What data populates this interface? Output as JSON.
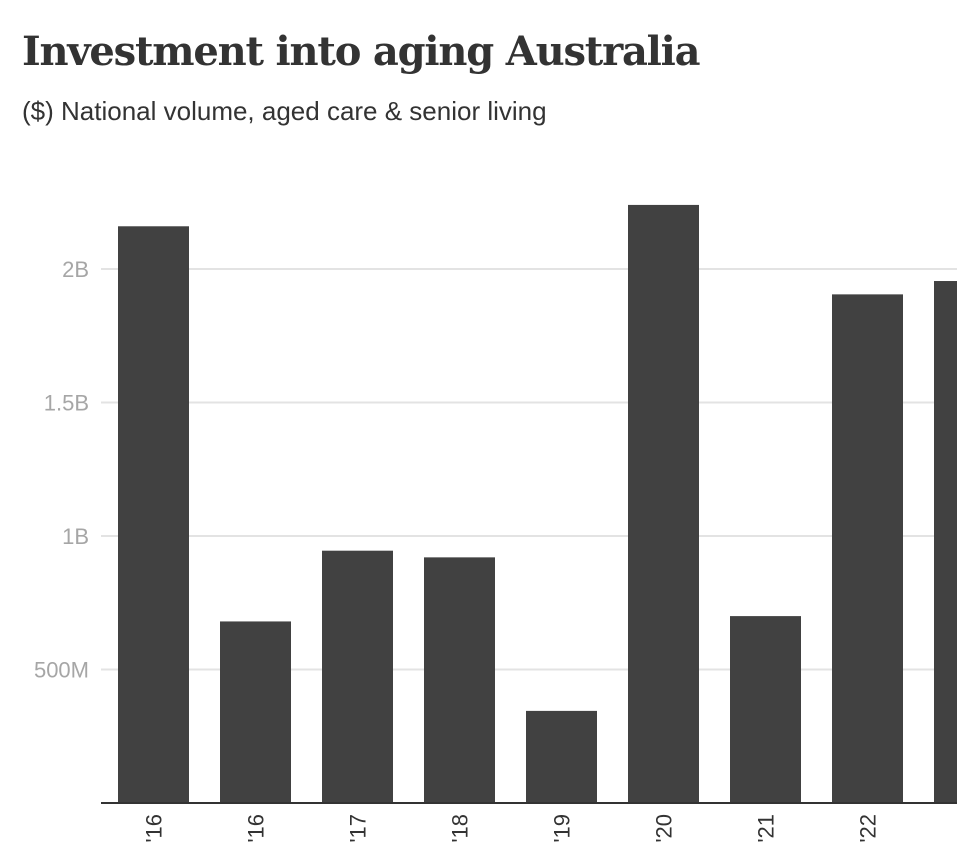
{
  "chart_data": {
    "type": "bar",
    "title": "Investment into aging Australia",
    "subtitle": "($) National volume, aged care & senior living",
    "xlabel": "",
    "ylabel": "",
    "categories": [
      "'16",
      "'16",
      "'17",
      "'18",
      "'19",
      "'20",
      "'21",
      "'22",
      ""
    ],
    "values": [
      2160000000,
      680000000,
      945000000,
      920000000,
      345000000,
      2240000000,
      700000000,
      1905000000,
      1955000000
    ],
    "ylim": [
      0,
      2500000000
    ],
    "yticks": [
      500000000,
      1000000000,
      1500000000,
      2000000000
    ],
    "ytick_labels": [
      "500M",
      "1B",
      "1.5B",
      "2B"
    ],
    "grid": true,
    "legend": "none",
    "bar_color": "#414141"
  }
}
